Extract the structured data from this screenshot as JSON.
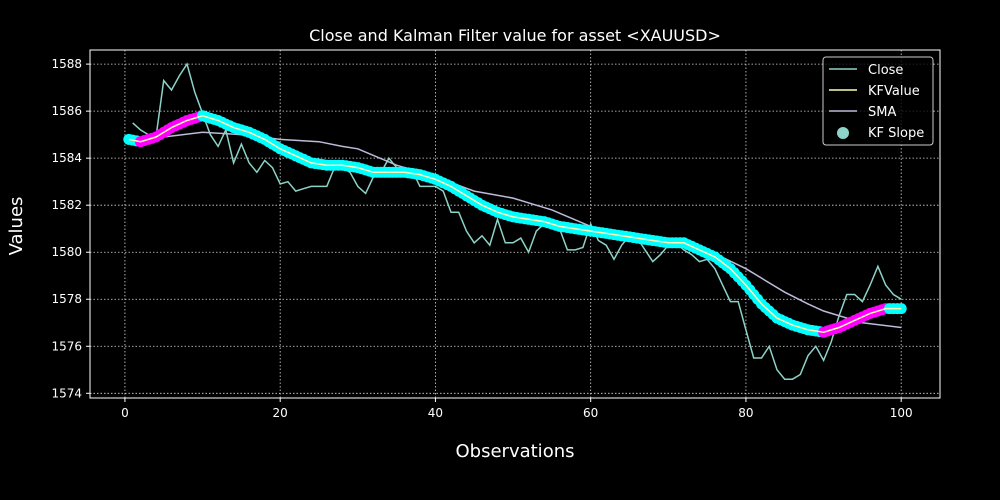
{
  "chart_data": {
    "type": "line",
    "title": "Close and Kalman Filter value for asset <XAUUSD>",
    "xlabel": "Observations",
    "ylabel": "Values",
    "xlim": [
      -4.5,
      105
    ],
    "ylim": [
      1573.8,
      1588.6
    ],
    "x_ticks": [
      0,
      20,
      40,
      60,
      80,
      100
    ],
    "y_ticks": [
      1574,
      1576,
      1578,
      1580,
      1582,
      1584,
      1586,
      1588
    ],
    "grid": true,
    "legend_position": "top-right",
    "series": [
      {
        "name": "Close",
        "color": "#8dd3c7",
        "style": "line",
        "x": [
          1,
          2,
          3,
          4,
          5,
          6,
          7,
          8,
          9,
          10,
          11,
          12,
          13,
          14,
          15,
          16,
          17,
          18,
          19,
          20,
          21,
          22,
          23,
          24,
          25,
          26,
          27,
          28,
          29,
          30,
          31,
          32,
          33,
          34,
          35,
          36,
          37,
          38,
          39,
          40,
          41,
          42,
          43,
          44,
          45,
          46,
          47,
          48,
          49,
          50,
          51,
          52,
          53,
          54,
          55,
          56,
          57,
          58,
          59,
          60,
          61,
          62,
          63,
          64,
          65,
          66,
          67,
          68,
          69,
          70,
          71,
          72,
          73,
          74,
          75,
          76,
          77,
          78,
          79,
          80,
          81,
          82,
          83,
          84,
          85,
          86,
          87,
          88,
          89,
          90,
          91,
          92,
          93,
          94,
          95,
          96,
          97,
          98,
          99,
          100
        ],
        "values": [
          1585.5,
          1585.2,
          1585.0,
          1584.9,
          1587.3,
          1586.9,
          1587.5,
          1588.0,
          1586.8,
          1585.9,
          1585.0,
          1584.5,
          1585.2,
          1583.8,
          1584.6,
          1583.8,
          1583.4,
          1583.9,
          1583.6,
          1582.9,
          1583.0,
          1582.6,
          1582.7,
          1582.8,
          1582.8,
          1582.8,
          1583.6,
          1583.6,
          1583.4,
          1582.8,
          1582.5,
          1583.2,
          1583.4,
          1584.0,
          1583.6,
          1583.5,
          1583.5,
          1582.8,
          1582.8,
          1582.8,
          1582.6,
          1581.7,
          1581.7,
          1580.9,
          1580.4,
          1580.7,
          1580.3,
          1581.4,
          1580.4,
          1580.4,
          1580.6,
          1580.0,
          1580.9,
          1581.2,
          1581.0,
          1581.0,
          1580.1,
          1580.1,
          1580.2,
          1581.2,
          1580.5,
          1580.3,
          1579.7,
          1580.3,
          1580.7,
          1580.6,
          1580.1,
          1579.6,
          1579.9,
          1580.3,
          1580.4,
          1580.1,
          1579.9,
          1579.6,
          1579.7,
          1579.3,
          1578.6,
          1577.9,
          1577.9,
          1576.7,
          1575.5,
          1575.5,
          1576.0,
          1575.0,
          1574.6,
          1574.6,
          1574.8,
          1575.6,
          1576.0,
          1575.4,
          1576.2,
          1577.3,
          1578.2,
          1578.2,
          1577.9,
          1578.6,
          1579.4,
          1578.6,
          1578.2,
          1578.0
        ]
      },
      {
        "name": "KFValue",
        "color": "#ffffb3",
        "style": "line",
        "x": [
          0.5,
          2,
          4,
          6,
          8,
          10,
          12,
          14,
          16,
          18,
          20,
          22,
          24,
          26,
          28,
          30,
          32,
          34,
          36,
          38,
          40,
          42,
          44,
          46,
          48,
          50,
          52,
          54,
          56,
          58,
          60,
          62,
          64,
          66,
          68,
          70,
          72,
          74,
          76,
          78,
          80,
          82,
          84,
          86,
          88,
          90,
          92,
          94,
          96,
          98,
          100
        ],
        "values": [
          1584.8,
          1584.7,
          1584.9,
          1585.3,
          1585.6,
          1585.8,
          1585.6,
          1585.3,
          1585.1,
          1584.8,
          1584.4,
          1584.1,
          1583.8,
          1583.7,
          1583.7,
          1583.6,
          1583.4,
          1583.4,
          1583.4,
          1583.3,
          1583.1,
          1582.8,
          1582.4,
          1582.0,
          1581.7,
          1581.5,
          1581.4,
          1581.3,
          1581.1,
          1581.0,
          1580.9,
          1580.8,
          1580.7,
          1580.6,
          1580.5,
          1580.4,
          1580.4,
          1580.1,
          1579.8,
          1579.3,
          1578.6,
          1577.8,
          1577.2,
          1576.9,
          1576.7,
          1576.6,
          1576.8,
          1577.1,
          1577.4,
          1577.6,
          1577.6
        ]
      },
      {
        "name": "SMA",
        "color": "#bebada",
        "style": "line",
        "x": [
          1,
          5,
          10,
          15,
          20,
          25,
          28,
          30,
          35,
          40,
          45,
          50,
          55,
          60,
          65,
          70,
          75,
          80,
          85,
          88,
          90,
          95,
          100
        ],
        "values": [
          1584.8,
          1584.9,
          1585.1,
          1585.0,
          1584.8,
          1584.7,
          1584.5,
          1584.4,
          1583.7,
          1583.2,
          1582.6,
          1582.3,
          1581.8,
          1581.1,
          1580.7,
          1580.5,
          1580.1,
          1579.3,
          1578.3,
          1577.8,
          1577.5,
          1577.0,
          1576.8
        ]
      },
      {
        "name": "KF Slope",
        "color": "#8dd3c7",
        "style": "scatter",
        "up_color": "#ff00ff",
        "down_color": "#00ffff"
      }
    ]
  }
}
